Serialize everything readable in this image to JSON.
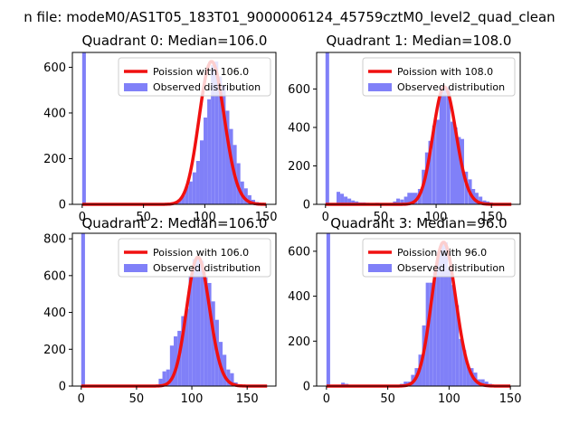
{
  "suptitle": "n file: modeM0/AS1T05_183T01_9000006124_45759cztM0_level2_quad_clean",
  "colors": {
    "hist": "#8080f8",
    "fit": "#f01010",
    "axis": "#000000"
  },
  "chart_data": [
    {
      "type": "bar",
      "title": "Quadrant 0: Median=106.0",
      "legend": [
        "Poission with 106.0",
        "Observed distribution"
      ],
      "legend_position": "top-right",
      "median": 106.0,
      "xlim": [
        -8,
        158
      ],
      "ylim": [
        0,
        665
      ],
      "xticks": [
        0,
        50,
        100,
        150
      ],
      "yticks": [
        0,
        200,
        400,
        600
      ],
      "bin_width": 3,
      "bins": [
        [
          0,
          665
        ],
        [
          75,
          10
        ],
        [
          78,
          20
        ],
        [
          81,
          40
        ],
        [
          84,
          80
        ],
        [
          87,
          100
        ],
        [
          90,
          140
        ],
        [
          93,
          190
        ],
        [
          96,
          280
        ],
        [
          99,
          380
        ],
        [
          102,
          460
        ],
        [
          105,
          610
        ],
        [
          108,
          625
        ],
        [
          111,
          560
        ],
        [
          114,
          520
        ],
        [
          117,
          410
        ],
        [
          120,
          330
        ],
        [
          123,
          260
        ],
        [
          126,
          180
        ],
        [
          129,
          100
        ],
        [
          132,
          70
        ],
        [
          135,
          40
        ],
        [
          138,
          20
        ],
        [
          141,
          10
        ]
      ]
    },
    {
      "type": "bar",
      "title": "Quadrant 1: Median=108.0",
      "legend": [
        "Poission with 108.0",
        "Observed distribution"
      ],
      "legend_position": "top-right",
      "median": 108.0,
      "xlim": [
        -8,
        176
      ],
      "ylim": [
        0,
        790
      ],
      "xticks": [
        0,
        50,
        100,
        150
      ],
      "yticks": [
        0,
        200,
        400,
        600
      ],
      "bin_width": 3.3,
      "bins": [
        [
          0,
          790
        ],
        [
          10,
          65
        ],
        [
          13.3,
          55
        ],
        [
          16.6,
          40
        ],
        [
          19.9,
          30
        ],
        [
          23.2,
          20
        ],
        [
          26.5,
          15
        ],
        [
          29.8,
          10
        ],
        [
          33.1,
          10
        ],
        [
          36.4,
          8
        ],
        [
          45,
          8
        ],
        [
          61,
          15
        ],
        [
          64,
          30
        ],
        [
          67.5,
          25
        ],
        [
          71,
          40
        ],
        [
          74,
          60
        ],
        [
          77,
          60
        ],
        [
          80,
          60
        ],
        [
          83.5,
          80
        ],
        [
          87,
          180
        ],
        [
          90,
          270
        ],
        [
          93,
          330
        ],
        [
          96.5,
          410
        ],
        [
          100,
          440
        ],
        [
          103,
          610
        ],
        [
          106,
          610
        ],
        [
          109.5,
          610
        ],
        [
          113,
          430
        ],
        [
          116,
          400
        ],
        [
          119,
          350
        ],
        [
          122,
          340
        ],
        [
          125.5,
          170
        ],
        [
          129,
          130
        ],
        [
          132,
          80
        ],
        [
          135,
          60
        ],
        [
          138.5,
          40
        ],
        [
          142,
          20
        ],
        [
          145,
          15
        ],
        [
          148,
          10
        ],
        [
          151,
          5
        ]
      ]
    },
    {
      "type": "bar",
      "title": "Quadrant 2: Median=106.0",
      "legend": [
        "Poission with 106.0",
        "Observed distribution"
      ],
      "legend_position": "top-right",
      "median": 106.0,
      "xlim": [
        -8,
        176
      ],
      "ylim": [
        0,
        830
      ],
      "xticks": [
        0,
        50,
        100,
        150
      ],
      "yticks": [
        0,
        200,
        400,
        600,
        800
      ],
      "bin_width": 3.4,
      "bins": [
        [
          0,
          830
        ],
        [
          70,
          40
        ],
        [
          73.4,
          80
        ],
        [
          76.8,
          90
        ],
        [
          80.2,
          220
        ],
        [
          83.6,
          270
        ],
        [
          87,
          300
        ],
        [
          90.4,
          380
        ],
        [
          93.8,
          420
        ],
        [
          97.2,
          600
        ],
        [
          100.6,
          690
        ],
        [
          104,
          700
        ],
        [
          107.4,
          680
        ],
        [
          110.8,
          590
        ],
        [
          114.2,
          560
        ],
        [
          117.6,
          460
        ],
        [
          121,
          360
        ],
        [
          124.4,
          240
        ],
        [
          127.8,
          170
        ],
        [
          131.2,
          90
        ],
        [
          134.6,
          70
        ],
        [
          138,
          20
        ],
        [
          141.4,
          10
        ],
        [
          144.8,
          5
        ]
      ]
    },
    {
      "type": "bar",
      "title": "Quadrant 3: Median=96.0",
      "legend": [
        "Poission with 96.0",
        "Observed distribution"
      ],
      "legend_position": "top-right",
      "median": 96.0,
      "xlim": [
        -8,
        158
      ],
      "ylim": [
        0,
        680
      ],
      "xticks": [
        0,
        50,
        100,
        150
      ],
      "yticks": [
        0,
        200,
        400,
        600
      ],
      "bin_width": 3,
      "bins": [
        [
          0,
          680
        ],
        [
          12,
          15
        ],
        [
          15,
          10
        ],
        [
          30,
          5
        ],
        [
          60,
          10
        ],
        [
          63,
          20
        ],
        [
          66,
          20
        ],
        [
          69,
          50
        ],
        [
          72,
          80
        ],
        [
          75,
          140
        ],
        [
          78,
          270
        ],
        [
          81,
          460
        ],
        [
          84,
          460
        ],
        [
          87,
          510
        ],
        [
          90,
          600
        ],
        [
          93,
          640
        ],
        [
          96,
          640
        ],
        [
          99,
          520
        ],
        [
          102,
          450
        ],
        [
          105,
          360
        ],
        [
          108,
          210
        ],
        [
          111,
          160
        ],
        [
          114,
          90
        ],
        [
          117,
          80
        ],
        [
          120,
          60
        ],
        [
          123,
          30
        ],
        [
          126,
          30
        ],
        [
          129,
          20
        ],
        [
          132,
          10
        ]
      ]
    }
  ]
}
